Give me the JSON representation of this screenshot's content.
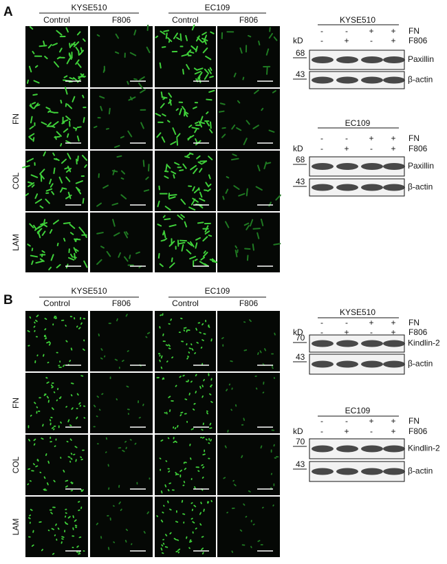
{
  "panels": [
    {
      "label": "A",
      "microscopy": {
        "groups": [
          {
            "name": "KYSE510",
            "columns": [
              "Control",
              "F806"
            ]
          },
          {
            "name": "EC109",
            "columns": [
              "Control",
              "F806"
            ]
          }
        ],
        "row_labels": [
          "FN",
          "COL",
          "LAM"
        ]
      },
      "blots": [
        {
          "title": "KYSE510",
          "unit": "kD",
          "conditions": [
            {
              "name": "FN",
              "values": [
                "-",
                "-",
                "+",
                "+"
              ]
            },
            {
              "name": "F806",
              "values": [
                "-",
                "+",
                "-",
                "+"
              ]
            }
          ],
          "bands": [
            {
              "marker": "68",
              "protein": "Paxillin"
            },
            {
              "marker": "43",
              "protein": "β-actin"
            }
          ]
        },
        {
          "title": "EC109",
          "unit": "kD",
          "conditions": [
            {
              "name": "FN",
              "values": [
                "-",
                "-",
                "+",
                "+"
              ]
            },
            {
              "name": "F806",
              "values": [
                "-",
                "+",
                "-",
                "+"
              ]
            }
          ],
          "bands": [
            {
              "marker": "68",
              "protein": "Paxillin"
            },
            {
              "marker": "43",
              "protein": "β-actin"
            }
          ]
        }
      ]
    },
    {
      "label": "B",
      "microscopy": {
        "groups": [
          {
            "name": "KYSE510",
            "columns": [
              "Control",
              "F806"
            ]
          },
          {
            "name": "EC109",
            "columns": [
              "Control",
              "F806"
            ]
          }
        ],
        "row_labels": [
          "FN",
          "COL",
          "LAM"
        ]
      },
      "blots": [
        {
          "title": "KYSE510",
          "unit": "kD",
          "conditions": [
            {
              "name": "FN",
              "values": [
                "-",
                "-",
                "+",
                "+"
              ]
            },
            {
              "name": "F806",
              "values": [
                "-",
                "+",
                "-",
                "+"
              ]
            }
          ],
          "bands": [
            {
              "marker": "70",
              "protein": "Kindlin-2"
            },
            {
              "marker": "43",
              "protein": "β-actin"
            }
          ]
        },
        {
          "title": "EC109",
          "unit": "kD",
          "conditions": [
            {
              "name": "FN",
              "values": [
                "-",
                "-",
                "+",
                "+"
              ]
            },
            {
              "name": "F806",
              "values": [
                "-",
                "+",
                "-",
                "+"
              ]
            }
          ],
          "bands": [
            {
              "marker": "70",
              "protein": "Kindlin-2"
            },
            {
              "marker": "43",
              "protein": "β-actin"
            }
          ]
        }
      ]
    }
  ]
}
